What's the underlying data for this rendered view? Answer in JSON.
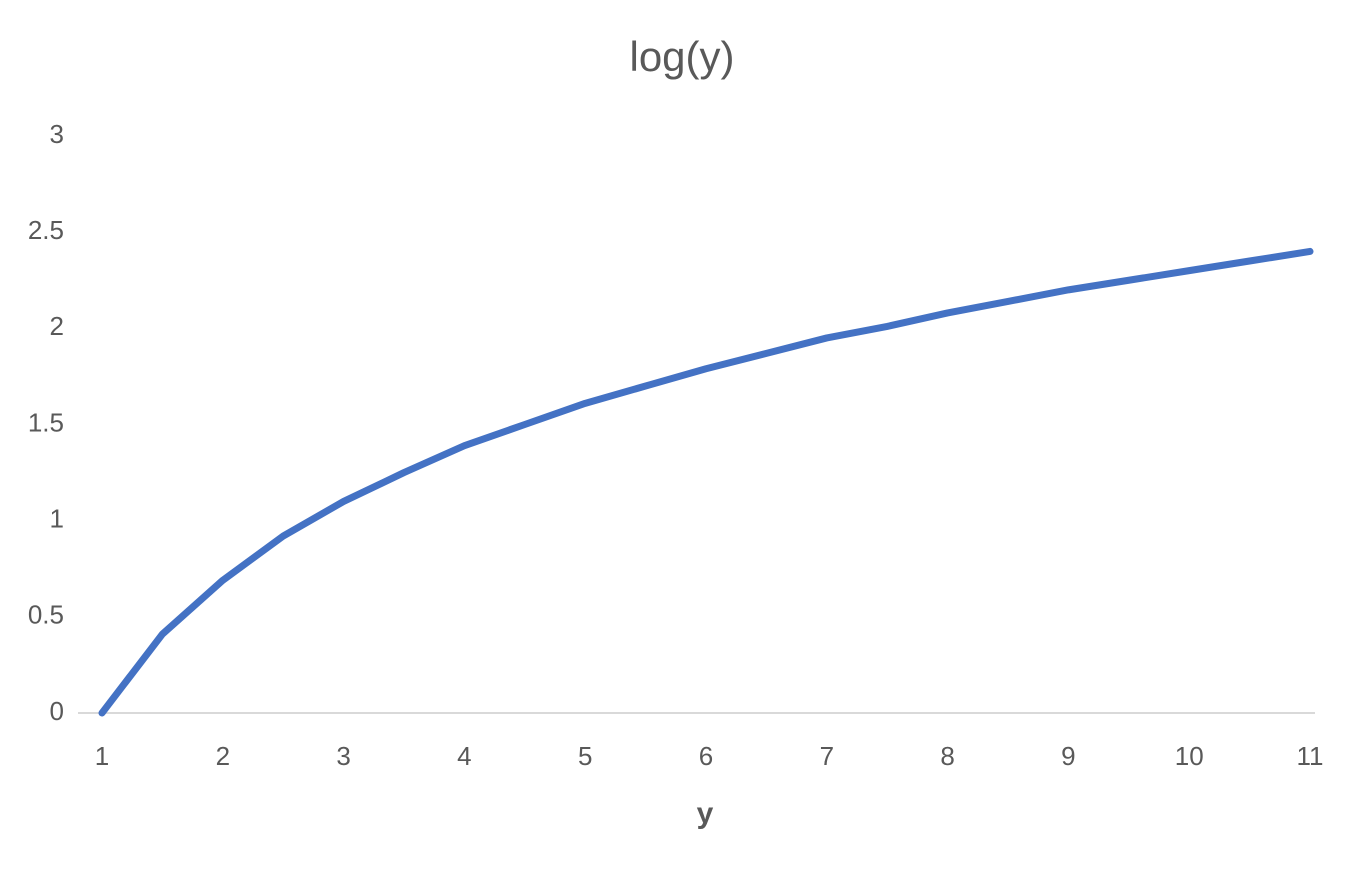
{
  "chart_data": {
    "type": "line",
    "title": "log(y)",
    "x_label": "y",
    "x": [
      1,
      1.5,
      2,
      2.5,
      3,
      3.5,
      4,
      4.5,
      5,
      5.5,
      6,
      6.5,
      7,
      7.5,
      8,
      8.5,
      9,
      9.5,
      10,
      10.5,
      11
    ],
    "series": [
      {
        "name": "log(y)",
        "color": "#4472c4",
        "values": [
          0,
          0.41,
          0.69,
          0.92,
          1.1,
          1.25,
          1.39,
          1.5,
          1.61,
          1.7,
          1.79,
          1.87,
          1.95,
          2.01,
          2.08,
          2.14,
          2.2,
          2.25,
          2.3,
          2.35,
          2.4
        ]
      }
    ],
    "xlim": [
      1,
      11
    ],
    "xticks": [
      1,
      2,
      3,
      4,
      5,
      6,
      7,
      8,
      9,
      10,
      11
    ],
    "ylim": [
      0,
      3
    ],
    "yticks": [
      0,
      0.5,
      1,
      1.5,
      2,
      2.5,
      3
    ],
    "grid": false
  }
}
